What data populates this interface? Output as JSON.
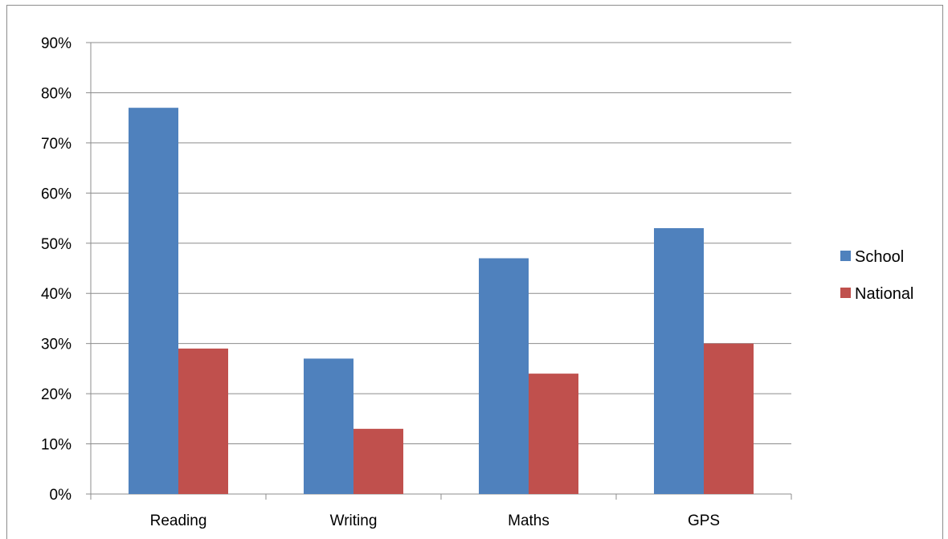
{
  "chart_data": {
    "type": "bar",
    "categories": [
      "Reading",
      "Writing",
      "Maths",
      "GPS"
    ],
    "series": [
      {
        "name": "School",
        "values": [
          77,
          27,
          47,
          53
        ],
        "color": "#4f81bd"
      },
      {
        "name": "National",
        "values": [
          29,
          13,
          24,
          30
        ],
        "color": "#c0504d"
      }
    ],
    "title": "",
    "xlabel": "",
    "ylabel": "",
    "ylim": [
      0,
      90
    ],
    "yticks": [
      "0%",
      "10%",
      "20%",
      "30%",
      "40%",
      "50%",
      "60%",
      "70%",
      "80%",
      "90%"
    ],
    "grid": true,
    "legend": "right",
    "colors": {
      "gridline": "#8c8c8c",
      "frame": "#8c8c8c"
    }
  }
}
